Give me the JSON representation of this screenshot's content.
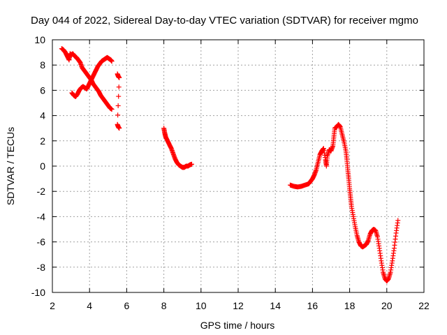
{
  "chart_data": {
    "type": "scatter",
    "title": "Day 044 of 2022, Sidereal Day-to-day VTEC variation (SDTVAR) for receiver mgmo",
    "xlabel": "GPS time / hours",
    "ylabel": "SDTVAR / TECUs",
    "xlim": [
      2,
      22
    ],
    "ylim": [
      -10,
      10
    ],
    "xticks": [
      "2",
      "4",
      "6",
      "8",
      "10",
      "12",
      "14",
      "16",
      "18",
      "20",
      "22"
    ],
    "yticks": [
      "10",
      "8",
      "6",
      "4",
      "2",
      "0",
      "-2",
      "-4",
      "-6",
      "-8",
      "-10"
    ],
    "grid": true,
    "marker": "+",
    "color": "#ff0000",
    "series": [
      {
        "name": "SDTVAR",
        "segments": [
          [
            [
              2.5,
              9.3
            ],
            [
              2.6,
              9.2
            ],
            [
              2.7,
              9.0
            ],
            [
              2.8,
              8.7
            ],
            [
              2.9,
              8.4
            ],
            [
              2.95,
              8.9
            ],
            [
              3.0,
              8.8
            ],
            [
              3.1,
              8.9
            ],
            [
              3.2,
              8.7
            ],
            [
              3.3,
              8.6
            ],
            [
              3.4,
              8.4
            ],
            [
              3.5,
              8.2
            ],
            [
              3.6,
              7.8
            ],
            [
              3.7,
              7.6
            ],
            [
              3.8,
              7.4
            ],
            [
              3.9,
              7.2
            ],
            [
              4.0,
              7.0
            ],
            [
              4.1,
              6.8
            ],
            [
              4.2,
              6.5
            ],
            [
              4.3,
              6.3
            ],
            [
              4.4,
              6.1
            ],
            [
              4.5,
              5.9
            ],
            [
              4.6,
              5.6
            ],
            [
              4.7,
              5.4
            ],
            [
              4.8,
              5.2
            ],
            [
              4.9,
              5.0
            ],
            [
              5.0,
              4.8
            ],
            [
              5.1,
              4.6
            ],
            [
              5.2,
              4.5
            ]
          ],
          [
            [
              3.05,
              5.8
            ],
            [
              3.15,
              5.6
            ],
            [
              3.25,
              5.5
            ],
            [
              3.35,
              5.7
            ],
            [
              3.45,
              6.0
            ],
            [
              3.55,
              6.2
            ],
            [
              3.65,
              6.3
            ],
            [
              3.75,
              6.2
            ],
            [
              3.85,
              6.1
            ],
            [
              3.95,
              6.4
            ],
            [
              4.05,
              6.7
            ],
            [
              4.15,
              7.0
            ],
            [
              4.25,
              7.3
            ],
            [
              4.35,
              7.6
            ],
            [
              4.45,
              7.9
            ],
            [
              4.55,
              8.1
            ],
            [
              4.65,
              8.3
            ],
            [
              4.75,
              8.4
            ],
            [
              4.85,
              8.5
            ],
            [
              4.95,
              8.6
            ],
            [
              5.05,
              8.5
            ],
            [
              5.15,
              8.4
            ],
            [
              5.2,
              8.3
            ]
          ],
          [
            [
              5.5,
              7.3
            ],
            [
              5.55,
              7.1
            ],
            [
              5.6,
              7.0
            ],
            [
              5.5,
              3.3
            ],
            [
              5.55,
              3.1
            ],
            [
              5.6,
              3.0
            ]
          ],
          [
            [
              8.0,
              3.0
            ],
            [
              8.05,
              2.6
            ],
            [
              8.1,
              2.3
            ],
            [
              8.2,
              2.0
            ],
            [
              8.3,
              1.7
            ],
            [
              8.4,
              1.4
            ],
            [
              8.5,
              1.0
            ],
            [
              8.6,
              0.6
            ],
            [
              8.7,
              0.3
            ],
            [
              8.8,
              0.1
            ],
            [
              8.9,
              0.0
            ],
            [
              9.0,
              -0.1
            ],
            [
              9.1,
              -0.1
            ],
            [
              9.2,
              0.0
            ],
            [
              9.3,
              0.0
            ],
            [
              9.4,
              0.1
            ],
            [
              9.5,
              0.15
            ]
          ],
          [
            [
              14.8,
              -1.5
            ],
            [
              15.0,
              -1.6
            ],
            [
              15.2,
              -1.65
            ],
            [
              15.4,
              -1.6
            ],
            [
              15.6,
              -1.5
            ],
            [
              15.8,
              -1.4
            ],
            [
              15.9,
              -1.2
            ],
            [
              16.0,
              -1.0
            ],
            [
              16.1,
              -0.7
            ],
            [
              16.2,
              -0.3
            ],
            [
              16.3,
              0.3
            ],
            [
              16.4,
              0.9
            ],
            [
              16.5,
              1.2
            ],
            [
              16.6,
              1.4
            ],
            [
              16.7,
              0.5
            ],
            [
              16.75,
              0.0
            ],
            [
              16.8,
              0.8
            ],
            [
              16.9,
              1.3
            ],
            [
              17.0,
              1.2
            ],
            [
              17.1,
              1.6
            ],
            [
              17.15,
              2.3
            ],
            [
              17.2,
              3.0
            ],
            [
              17.3,
              3.1
            ],
            [
              17.4,
              3.3
            ],
            [
              17.5,
              3.1
            ],
            [
              17.6,
              2.5
            ],
            [
              17.7,
              1.9
            ],
            [
              17.8,
              1.2
            ],
            [
              17.85,
              0.5
            ],
            [
              17.9,
              -0.3
            ],
            [
              17.95,
              -1.0
            ],
            [
              18.0,
              -1.8
            ],
            [
              18.05,
              -2.5
            ],
            [
              18.1,
              -3.2
            ],
            [
              18.2,
              -4.0
            ],
            [
              18.3,
              -4.8
            ],
            [
              18.4,
              -5.5
            ],
            [
              18.5,
              -6.0
            ],
            [
              18.6,
              -6.3
            ],
            [
              18.7,
              -6.4
            ],
            [
              18.8,
              -6.3
            ],
            [
              18.9,
              -6.2
            ],
            [
              19.0,
              -5.9
            ],
            [
              19.1,
              -5.4
            ],
            [
              19.2,
              -5.1
            ],
            [
              19.3,
              -5.0
            ],
            [
              19.4,
              -5.1
            ],
            [
              19.5,
              -5.6
            ],
            [
              19.6,
              -6.5
            ],
            [
              19.7,
              -7.5
            ],
            [
              19.8,
              -8.4
            ],
            [
              19.9,
              -8.9
            ],
            [
              20.0,
              -9.1
            ],
            [
              20.1,
              -8.9
            ],
            [
              20.2,
              -8.4
            ],
            [
              20.3,
              -7.5
            ],
            [
              20.4,
              -6.5
            ],
            [
              20.5,
              -5.3
            ],
            [
              20.6,
              -4.3
            ]
          ]
        ]
      }
    ]
  }
}
